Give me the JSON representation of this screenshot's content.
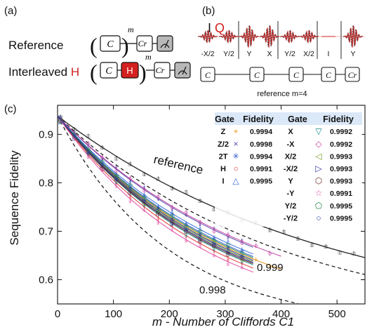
{
  "panel_a": {
    "label": "(a)",
    "rows": [
      {
        "name": "Reference",
        "gates": [
          "C",
          "Cr"
        ],
        "exponent": "m"
      },
      {
        "name": "Interleaved",
        "name_accent": "H",
        "gates": [
          "C",
          "H",
          "Cr"
        ],
        "exponent": "m"
      }
    ],
    "gate_sub": "r"
  },
  "panel_b": {
    "label": "(b)",
    "iq_labels": [
      "I",
      "Q"
    ],
    "pulse_labels": [
      "-X/2",
      "Y/2",
      "Y",
      "X",
      "Y/2",
      "X/2",
      "I",
      "Y"
    ],
    "sequence_gate": "C",
    "sequence_last": "Cr",
    "caption": "reference m=4"
  },
  "panel_c": {
    "label": "(c)",
    "annotations": {
      "reference": "reference",
      "bound_low": "0.998",
      "bound_high": "0.999"
    },
    "table": {
      "headers": [
        "Gate",
        "Fidelity",
        "Gate",
        "Fidelity"
      ],
      "left": [
        {
          "gate": "Z",
          "fidelity": "0.9994",
          "marker": "+",
          "color": "#e8941a"
        },
        {
          "gate": "Z/2",
          "fidelity": "0.9998",
          "marker": "×",
          "color": "#5a4fb0"
        },
        {
          "gate": "2T",
          "fidelity": "0.9994",
          "marker": "✳",
          "color": "#3a5fc8"
        },
        {
          "gate": "H",
          "fidelity": "0.9991",
          "marker": "○",
          "color": "#e03a3a"
        },
        {
          "gate": "I",
          "fidelity": "0.9995",
          "marker": "△",
          "color": "#3a6fd8"
        }
      ],
      "right": [
        {
          "gate": "X",
          "fidelity": "0.9992",
          "marker": "▽",
          "color": "#1a8a8a"
        },
        {
          "gate": "-X",
          "fidelity": "0.9992",
          "marker": "◇",
          "color": "#c040a0"
        },
        {
          "gate": "X/2",
          "fidelity": "0.9993",
          "marker": "◁",
          "color": "#7a9a20"
        },
        {
          "gate": "-X/2",
          "fidelity": "0.9993",
          "marker": "▷",
          "color": "#2a2aa0"
        },
        {
          "gate": "Y",
          "fidelity": "0.9993",
          "marker": "⬡",
          "color": "#6a2a2a"
        },
        {
          "gate": "-Y",
          "fidelity": "0.9991",
          "marker": "☆",
          "color": "#e04aa0"
        },
        {
          "gate": "Y/2",
          "fidelity": "0.9995",
          "marker": "⬠",
          "color": "#2a8a4a"
        },
        {
          "gate": "-Y/2",
          "fidelity": "0.9995",
          "marker": "○",
          "color": "#2a3aa0"
        }
      ]
    }
  },
  "chart_data": {
    "type": "scatter",
    "xlabel": "m - Number of Cliffords C1",
    "ylabel": "Sequence Fidelity",
    "xlim": [
      0,
      550
    ],
    "ylim": [
      0.55,
      0.96
    ],
    "xticks": [
      0,
      100,
      200,
      300,
      400,
      500
    ],
    "yticks": [
      0.6,
      0.7,
      0.8,
      0.9
    ],
    "ytick_labels": [
      "0.6",
      "0.7",
      "0.8",
      "0.9"
    ],
    "decay_start": 0.938,
    "series": [
      {
        "name": "reference",
        "color": "#222222",
        "x_max": 550,
        "p": 0.998
      },
      {
        "name": "Z",
        "color": "#e8941a",
        "x_max": 400,
        "p": 0.9968
      },
      {
        "name": "Z/2",
        "color": "#5a4fb0",
        "x_max": 350,
        "p": 0.99725
      },
      {
        "name": "2T",
        "color": "#3a5fc8",
        "x_max": 350,
        "p": 0.9969
      },
      {
        "name": "H",
        "color": "#e03a3a",
        "x_max": 350,
        "p": 0.9964
      },
      {
        "name": "I",
        "color": "#3a6fd8",
        "x_max": 350,
        "p": 0.997
      },
      {
        "name": "X",
        "color": "#1a8a8a",
        "x_max": 350,
        "p": 0.99655
      },
      {
        "name": "-X",
        "color": "#c040a0",
        "x_max": 400,
        "p": 0.9973
      },
      {
        "name": "X/2",
        "color": "#7a9a20",
        "x_max": 350,
        "p": 0.9967
      },
      {
        "name": "-X/2",
        "color": "#2a2aa0",
        "x_max": 350,
        "p": 0.99665
      },
      {
        "name": "Y",
        "color": "#6a2a2a",
        "x_max": 350,
        "p": 0.9966
      },
      {
        "name": "-Y",
        "color": "#e04aa0",
        "x_max": 350,
        "p": 0.9962
      },
      {
        "name": "Y/2",
        "color": "#2a8a4a",
        "x_max": 350,
        "p": 0.99685
      },
      {
        "name": "-Y/2",
        "color": "#2a3aa0",
        "x_max": 350,
        "p": 0.99675
      }
    ],
    "bounds": [
      {
        "name": "0.998",
        "p": 0.995
      },
      {
        "name": "0.999",
        "p": 0.9975
      }
    ]
  }
}
